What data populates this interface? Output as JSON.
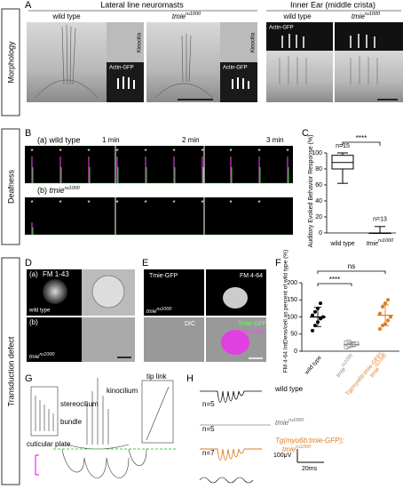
{
  "rows": [
    "Morphology",
    "Deafness",
    "Transduction defect"
  ],
  "panels": {
    "A": {
      "label": "A",
      "lateral": "Lateral line neuromasts",
      "inner": "Inner Ear (middle crista)",
      "wt": "wild type",
      "mut": {
        "gene": "tmie",
        "allele": "ru1000"
      },
      "kinocilia": "Kinocilia",
      "actin": "Actin-GFP"
    },
    "B": {
      "label": "B",
      "wt": "(a) wild type",
      "mut_prefix": "(b)",
      "mut": {
        "gene": "tmie",
        "allele": "ru1000"
      },
      "times": [
        "1 min",
        "2 min",
        "3 min"
      ],
      "marker": "*"
    },
    "C": {
      "label": "C",
      "ylabel": "Auditory Evoked Behavior Response (%)",
      "ylim": [
        0,
        100
      ],
      "yticks": [
        0,
        20,
        40,
        60,
        80,
        100
      ],
      "sig": "****",
      "groups": [
        {
          "name": "wild type",
          "n": "n=15",
          "min": 62,
          "q1": 80,
          "median": 88,
          "q3": 97,
          "max": 100
        },
        {
          "name": {
            "gene": "tmie",
            "allele": "ru1000"
          },
          "n": "n=13",
          "min": 0,
          "q1": 0,
          "median": 0,
          "q3": 0,
          "max": 8
        }
      ]
    },
    "D": {
      "label": "D",
      "a": "(a)",
      "stain": "FM 1-43",
      "wt": "wild type",
      "b": "(b)",
      "mut": {
        "gene": "tmie",
        "allele": "ru1000"
      }
    },
    "E": {
      "label": "E",
      "gfp": "Tmie-GFP",
      "fm": "FM 4-64",
      "mut": {
        "gene": "tmie",
        "allele": "ru1000"
      },
      "dic": "DIC"
    },
    "F": {
      "label": "F",
      "ylabel": "FM 4-64 IntDens/cell as percent of wild type (%)",
      "ylim": [
        0,
        200
      ],
      "yticks": [
        0,
        50,
        100,
        150,
        200
      ],
      "ns": "ns",
      "sig": "****",
      "groups": [
        {
          "name": "wild type",
          "color": "#000000",
          "mean": 100,
          "sd": 28,
          "points": [
            60,
            75,
            85,
            95,
            100,
            105,
            115,
            125,
            140
          ]
        },
        {
          "name": {
            "gene": "tmie",
            "allele": "ru1000"
          },
          "color": "#888888",
          "mean": 20,
          "sd": 7,
          "points": [
            12,
            15,
            18,
            20,
            22,
            25,
            28
          ]
        },
        {
          "name": {
            "prefix": "Tg(myo6b:tmie-GFP);",
            "gene": "tmie",
            "allele": "ru1000"
          },
          "color": "#e07a1f",
          "mean": 105,
          "sd": 30,
          "points": [
            65,
            75,
            80,
            90,
            100,
            110,
            130,
            140,
            150
          ]
        }
      ]
    },
    "G": {
      "label": "G",
      "kinocilium": "kinocilium",
      "stereocilium": "stereocilium",
      "bundle": "bundle",
      "cuticular": "cuticular plate",
      "tiplink": "tip link"
    },
    "H": {
      "label": "H",
      "n_wt": "n=5",
      "wt": "wild type",
      "n_mut": "n=5",
      "mut": {
        "gene": "tmie",
        "allele": "ru1000"
      },
      "n_res": "n=7",
      "res": {
        "prefix": "Tg(myo6b:tmie-GFP);",
        "gene": "tmie",
        "allele": "ru1000"
      },
      "volt": "100μV",
      "time": "20ms"
    }
  }
}
